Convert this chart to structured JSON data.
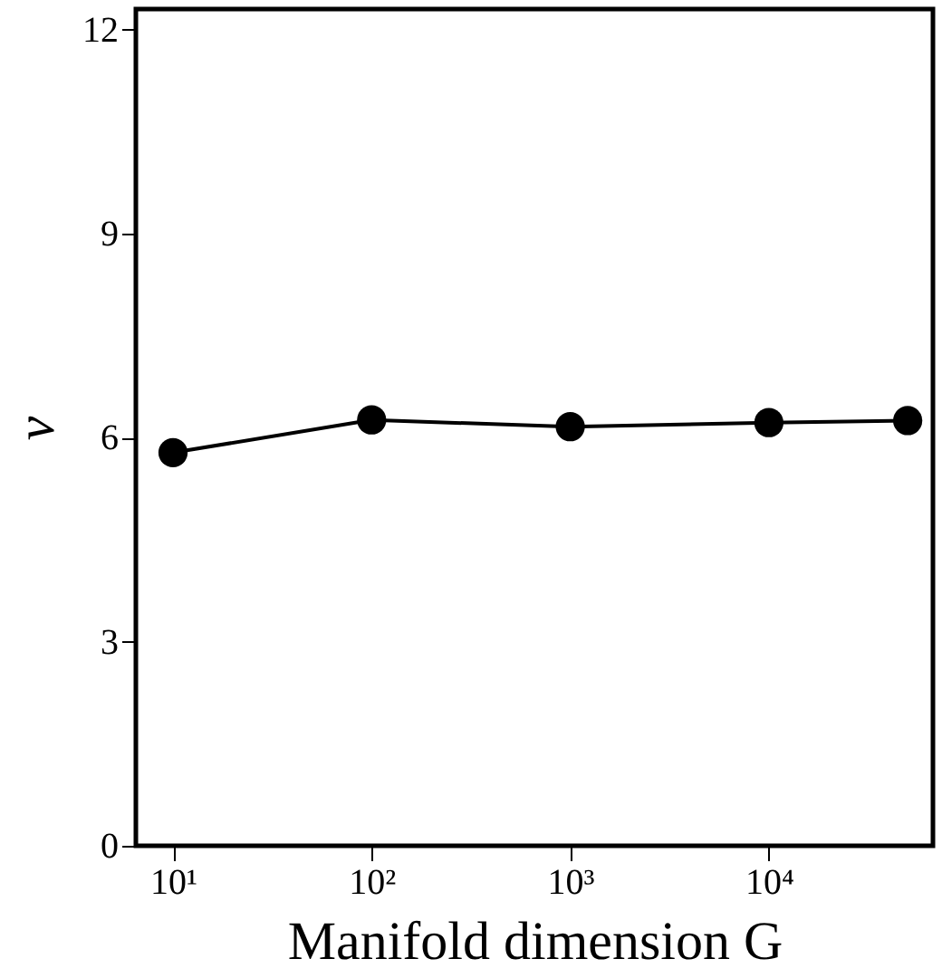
{
  "chart_data": {
    "type": "line",
    "xlabel": "Manifold dimension G",
    "ylabel": "ν",
    "x": [
      10,
      100,
      1000,
      10000,
      50000
    ],
    "series": [
      {
        "color": "#000000",
        "values": [
          5.78,
          6.26,
          6.16,
          6.22,
          6.25
        ]
      }
    ],
    "log": "x",
    "xlim": [
      6.5,
      67000
    ],
    "xticks": [
      {
        "value": 10,
        "label": "10¹"
      },
      {
        "value": 100,
        "label": "10²"
      },
      {
        "value": 1000,
        "label": "10³"
      },
      {
        "value": 10000,
        "label": "10⁴"
      }
    ],
    "ylim": [
      0,
      12.3
    ],
    "yticks": [
      0,
      3,
      6,
      9,
      12
    ],
    "grid": false,
    "marker": "circle",
    "line_style": "solid"
  }
}
